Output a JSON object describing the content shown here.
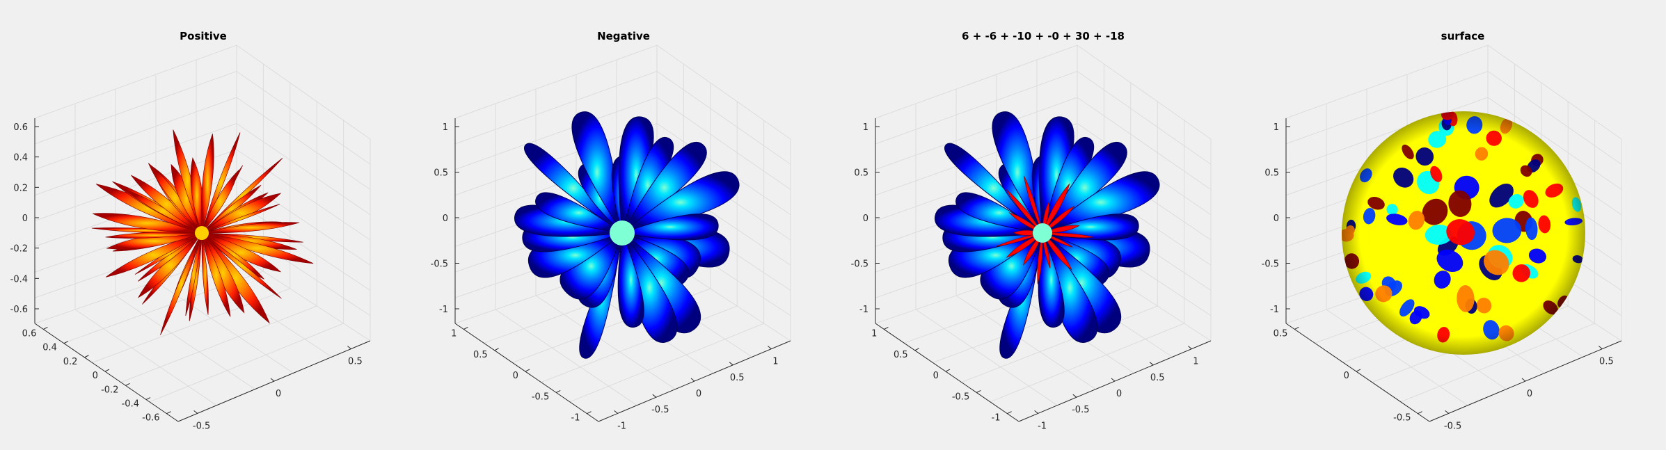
{
  "figure": {
    "background": "#f0f0f0",
    "colormap": "jet"
  },
  "chart_data": [
    {
      "type": "surface-3d",
      "title": "Positive",
      "shape": "spiky positive lobes radiating from the origin (red-orange)",
      "colors": [
        "#a50000",
        "#ff2000",
        "#ff8c00",
        "#ffd000"
      ],
      "zlim": [
        -0.6,
        0.6
      ],
      "z_ticks": [
        "0.6",
        "0.4",
        "0.2",
        "0",
        "-0.2",
        "-0.4",
        "-0.6"
      ],
      "y_ticks": [
        "0.6",
        "0.4",
        "0.2",
        "0",
        "-0.2",
        "-0.4",
        "-0.6"
      ],
      "x_ticks": [
        "-0.5",
        "0",
        "0.5"
      ],
      "grid": true
    },
    {
      "type": "surface-3d",
      "title": "Negative",
      "shape": "blobby negative lobes radiating from the origin (blue-cyan)",
      "colors": [
        "#00007f",
        "#0000ff",
        "#0080ff",
        "#00ffff"
      ],
      "zlim": [
        -1,
        1
      ],
      "z_ticks": [
        "1",
        "0.5",
        "0",
        "-0.5",
        "-1"
      ],
      "y_ticks": [
        "1",
        "0.5",
        "0",
        "-0.5",
        "-1"
      ],
      "x_ticks": [
        "-1",
        "-0.5",
        "0",
        "0.5",
        "1"
      ],
      "grid": true
    },
    {
      "type": "surface-3d",
      "title": "6 + -6 + -10 + -0 + 30 + -18",
      "shape": "combined negative (blue) lobes with thin positive (red) spikes",
      "colors": [
        "#00007f",
        "#0000ff",
        "#0080ff",
        "#00ffff",
        "#ff0000"
      ],
      "zlim": [
        -1,
        1
      ],
      "z_ticks": [
        "1",
        "0.5",
        "0",
        "-0.5",
        "-1"
      ],
      "y_ticks": [
        "1",
        "0.5",
        "0",
        "-0.5",
        "-1"
      ],
      "x_ticks": [
        "-1",
        "-0.5",
        "0",
        "0.5",
        "1"
      ],
      "grid": true
    },
    {
      "type": "surface-3d",
      "title": "surface",
      "shape": "unit sphere colored by spherical-harmonic value (jet)",
      "colors": [
        "#00007f",
        "#0000ff",
        "#00ffff",
        "#ffff00",
        "#ff0000",
        "#7f0000"
      ],
      "zlim": [
        -1,
        1
      ],
      "z_ticks": [
        "1",
        "0.5",
        "0",
        "-0.5",
        "-1"
      ],
      "y_ticks": [
        "0.5",
        "0",
        "-0.5"
      ],
      "x_ticks": [
        "-0.5",
        "0",
        "0.5"
      ],
      "grid": true
    }
  ]
}
